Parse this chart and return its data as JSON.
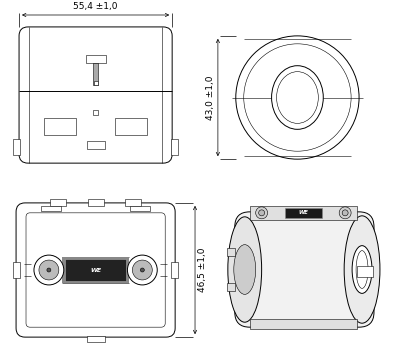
{
  "bg_color": "#ffffff",
  "lc": "#000000",
  "dim1_text": "55,4 ±1,0",
  "dim2_text": "43,0 ±1,0",
  "dim3_text": "46,5 ±1,0",
  "fig_width": 3.99,
  "fig_height": 3.57,
  "dpi": 100
}
